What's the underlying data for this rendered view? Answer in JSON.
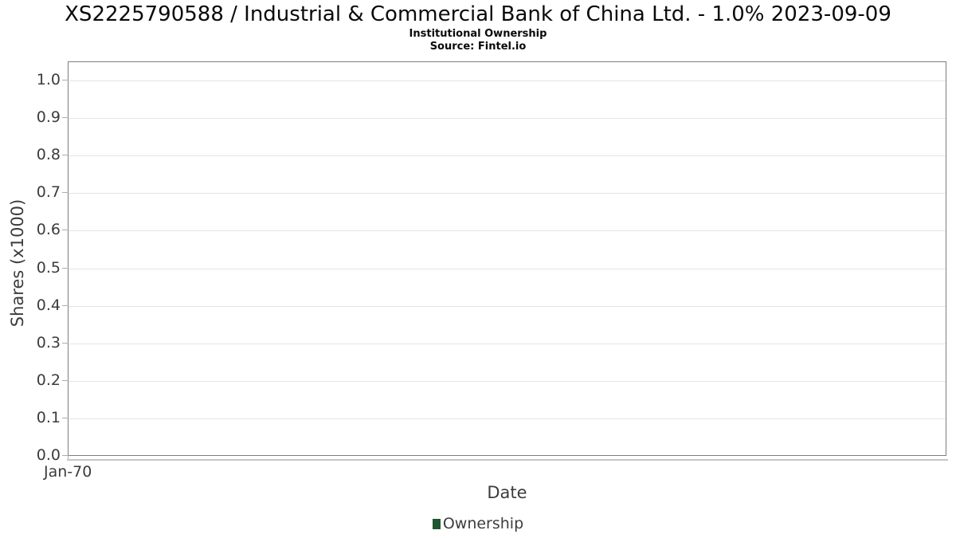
{
  "chart": {
    "title": "XS2225790588 / Industrial & Commercial Bank of China Ltd. - 1.0% 2023-09-09",
    "subtitle": "Institutional Ownership",
    "source": "Source: Fintel.io",
    "xlabel": "Date",
    "ylabel": "Shares (x1000)",
    "legend_label": "Ownership",
    "colors": {
      "legend_marker": "#1e5630",
      "plot_border": "#7e7e7e",
      "gridline": "#e4e4e4",
      "tick": "#adadad",
      "axis_secondary": "#c6c6c6",
      "text": "#3c3c3c",
      "title_text": "#0a0a0a"
    }
  },
  "chart_data": {
    "type": "line",
    "title": "XS2225790588 / Industrial & Commercial Bank of China Ltd. - 1.0% 2023-09-09",
    "subtitle": "Institutional Ownership",
    "source": "Source: Fintel.io",
    "xlabel": "Date",
    "ylabel": "Shares (x1000)",
    "x_tick_labels": [
      "Jan-70"
    ],
    "y_ticks": [
      0.0,
      0.1,
      0.2,
      0.3,
      0.4,
      0.5,
      0.6,
      0.7,
      0.8,
      0.9,
      1.0
    ],
    "ylim": [
      0,
      1.05
    ],
    "grid": "horizontal",
    "legend_position": "bottom",
    "series": [
      {
        "name": "Ownership",
        "color": "#1e5630",
        "x": [],
        "values": []
      }
    ]
  }
}
